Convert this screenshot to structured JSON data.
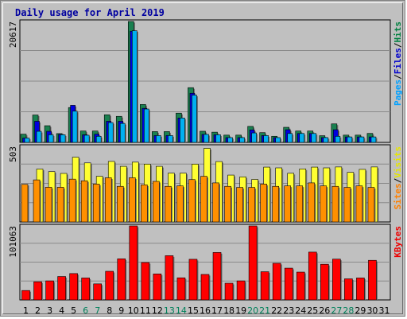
{
  "chart_data": {
    "type": "bar",
    "title": "Daily usage for April 2019",
    "categories": [
      "1",
      "2",
      "3",
      "4",
      "5",
      "6",
      "7",
      "8",
      "9",
      "10",
      "11",
      "12",
      "13",
      "14",
      "15",
      "16",
      "17",
      "18",
      "19",
      "20",
      "21",
      "22",
      "23",
      "24",
      "25",
      "26",
      "27",
      "28",
      "29",
      "30",
      "31"
    ],
    "weekend_days": [
      "6",
      "7",
      "13",
      "14",
      "20",
      "21",
      "27",
      "28"
    ],
    "panels": [
      {
        "id": "top",
        "max_label": "20617",
        "ymax": 20617,
        "legend": [
          {
            "text": "Pages",
            "color": "#00a0ff"
          },
          {
            "text": "/",
            "color": "#000000"
          },
          {
            "text": "Files",
            "color": "#0000cc"
          },
          {
            "text": "/",
            "color": "#000000"
          },
          {
            "text": "Hits",
            "color": "#008040"
          }
        ],
        "series": [
          {
            "name": "Hits",
            "color": "#1a8050",
            "values": [
              1404,
              4675,
              2845,
              1502,
              5941,
              1941,
              1941,
              4714,
              4443,
              20617,
              6466,
              1843,
              1843,
              4990,
              9337,
              1902,
              1746,
              1242,
              1242,
              2730,
              1668,
              1049,
              2574,
              1941,
              1941,
              1144,
              3156,
              1242,
              1242,
              1532,
              null
            ]
          },
          {
            "name": "Files",
            "color": "#0000e0",
            "values": [
              741,
              3604,
              1892,
              1364,
              6320,
              1305,
              1403,
              3604,
              3605,
              18959,
              5809,
              1168,
              1168,
              4163,
              8377,
              1364,
              1305,
              820,
              820,
              2130,
              1168,
              820,
              2164,
              1520,
              1520,
              820,
              2164,
              935,
              935,
              935,
              null
            ]
          },
          {
            "name": "Pages",
            "color": "#00b0f0",
            "values": [
              741,
              1892,
              1305,
              1305,
              5330,
              1226,
              1041,
              3380,
              3236,
              19044,
              5692,
              1168,
              1168,
              4163,
              8064,
              1364,
              1305,
              820,
              820,
              1616,
              1168,
              820,
              1520,
              1520,
              1520,
              820,
              1041,
              935,
              935,
              935,
              null
            ]
          }
        ]
      },
      {
        "id": "middle",
        "max_label": "503",
        "ymax": 503,
        "legend": [
          {
            "text": "Sites",
            "color": "#ff8000"
          },
          {
            "text": "/",
            "color": "#000000"
          },
          {
            "text": "Visits",
            "color": "#e6e600"
          }
        ],
        "series": [
          {
            "name": "Visits",
            "color": "#ffff33",
            "values": [
              null,
              352,
              335,
              323,
              431,
              393,
              304,
              403,
              370,
              398,
              385,
              370,
              325,
              325,
              385,
              490,
              402,
              312,
              300,
              283,
              365,
              360,
              324,
              353,
              365,
              360,
              366,
              330,
              350,
              366,
              null
            ]
          },
          {
            "name": "Sites",
            "color": "#ff9000",
            "values": [
              250,
              280,
              231,
              231,
              285,
              274,
              252,
              294,
              237,
              294,
              247,
              270,
              237,
              240,
              282,
              304,
              260,
              237,
              230,
              230,
              252,
              237,
              240,
              240,
              260,
              240,
              237,
              230,
              240,
              230,
              null
            ]
          }
        ]
      },
      {
        "id": "bottom",
        "max_label": "101063",
        "ymax": 101063,
        "legend": [
          {
            "text": "KBytes",
            "color": "#ee0000"
          }
        ],
        "series": [
          {
            "name": "KBytes",
            "color": "#ff0000",
            "values": [
              12850,
              24800,
              26000,
              32000,
              36000,
              30000,
              21900,
              39100,
              56100,
              101063,
              51100,
              35500,
              60400,
              30200,
              55500,
              34800,
              64800,
              22800,
              26000,
              101063,
              38500,
              50000,
              43400,
              38000,
              65300,
              48700,
              55700,
              28800,
              30000,
              54100,
              null
            ]
          }
        ]
      }
    ]
  }
}
